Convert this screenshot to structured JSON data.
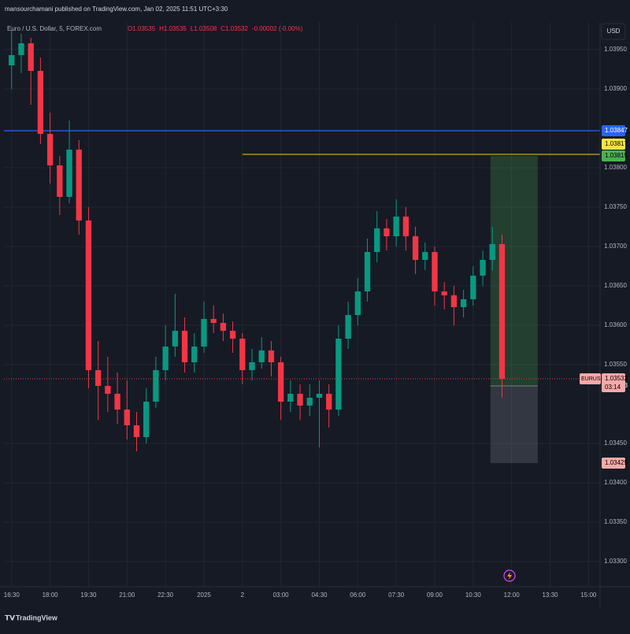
{
  "header": {
    "publisher": "mansourchamani published on TradingView.com, Jan 02, 2025 11:51 UTC+3:30",
    "symbol": "Euro / U.S. Dollar, 5, FOREX.com",
    "ohlc": [
      "O1.03535",
      "H1.03535",
      "L1.03508",
      "C1.03532",
      "-0.00002 (-0.00%)"
    ]
  },
  "currency": "USD",
  "footer": "TradingView",
  "chart_data": {
    "type": "candlestick",
    "up_color": "#089981",
    "down_color": "#f23645",
    "x": [
      0,
      0.25,
      0.5,
      0.75,
      1,
      1.25,
      1.5,
      1.75,
      2,
      2.25,
      2.5,
      2.75,
      3,
      3.25,
      3.5,
      3.75,
      4,
      4.25,
      4.5,
      4.75,
      5,
      5.25,
      5.5,
      5.75,
      6,
      6.25,
      6.5,
      6.75,
      7,
      7.25,
      7.5,
      7.75,
      8,
      8.25,
      8.5,
      8.75,
      9,
      9.25,
      9.5,
      9.75,
      10,
      10.25,
      10.5,
      10.75,
      11,
      11.25,
      11.5,
      11.75,
      12,
      12.25,
      12.5,
      12.75
    ],
    "candles": [
      [
        1.0393,
        1.03975,
        1.039,
        1.03943
      ],
      [
        1.03943,
        1.0397,
        1.0392,
        1.03958
      ],
      [
        1.03958,
        1.03965,
        1.0388,
        1.03923
      ],
      [
        1.03923,
        1.0394,
        1.0383,
        1.03843
      ],
      [
        1.03843,
        1.0387,
        1.0378,
        1.03803
      ],
      [
        1.03803,
        1.03815,
        1.0374,
        1.03763
      ],
      [
        1.03763,
        1.0386,
        1.03755,
        1.03823
      ],
      [
        1.03823,
        1.03835,
        1.03715,
        1.03733
      ],
      [
        1.03733,
        1.0375,
        1.0352,
        1.03543
      ],
      [
        1.03543,
        1.0358,
        1.0348,
        1.03523
      ],
      [
        1.03523,
        1.0356,
        1.0349,
        1.03513
      ],
      [
        1.03513,
        1.0354,
        1.03475,
        1.03493
      ],
      [
        1.03493,
        1.0353,
        1.03455,
        1.03473
      ],
      [
        1.03473,
        1.0349,
        1.0344,
        1.03458
      ],
      [
        1.03458,
        1.0352,
        1.0345,
        1.03503
      ],
      [
        1.03503,
        1.0356,
        1.03495,
        1.03543
      ],
      [
        1.03543,
        1.036,
        1.0353,
        1.03573
      ],
      [
        1.03573,
        1.0364,
        1.0356,
        1.03593
      ],
      [
        1.03593,
        1.0361,
        1.0354,
        1.03553
      ],
      [
        1.03553,
        1.0359,
        1.0354,
        1.03573
      ],
      [
        1.03573,
        1.0363,
        1.03565,
        1.03608
      ],
      [
        1.03608,
        1.03625,
        1.0359,
        1.03603
      ],
      [
        1.03603,
        1.03615,
        1.0358,
        1.03593
      ],
      [
        1.03593,
        1.03605,
        1.03565,
        1.03583
      ],
      [
        1.03583,
        1.0359,
        1.03525,
        1.03543
      ],
      [
        1.03543,
        1.0357,
        1.0353,
        1.03553
      ],
      [
        1.03553,
        1.03585,
        1.03545,
        1.03568
      ],
      [
        1.03568,
        1.0358,
        1.03535,
        1.03553
      ],
      [
        1.03553,
        1.0356,
        1.0348,
        1.03503
      ],
      [
        1.03503,
        1.0353,
        1.0349,
        1.03513
      ],
      [
        1.03513,
        1.03525,
        1.0348,
        1.03498
      ],
      [
        1.03498,
        1.03525,
        1.03485,
        1.03508
      ],
      [
        1.03508,
        1.0353,
        1.03445,
        1.03513
      ],
      [
        1.03513,
        1.03525,
        1.0347,
        1.03493
      ],
      [
        1.03493,
        1.036,
        1.03485,
        1.03583
      ],
      [
        1.03583,
        1.0363,
        1.0357,
        1.03613
      ],
      [
        1.03613,
        1.0366,
        1.036,
        1.03643
      ],
      [
        1.03643,
        1.0371,
        1.0363,
        1.03693
      ],
      [
        1.03693,
        1.03745,
        1.0368,
        1.03723
      ],
      [
        1.03723,
        1.03735,
        1.03695,
        1.03713
      ],
      [
        1.03713,
        1.0376,
        1.037,
        1.03738
      ],
      [
        1.03738,
        1.0375,
        1.03695,
        1.03713
      ],
      [
        1.03713,
        1.03725,
        1.03665,
        1.03683
      ],
      [
        1.03683,
        1.03705,
        1.0367,
        1.03693
      ],
      [
        1.03693,
        1.037,
        1.03625,
        1.03643
      ],
      [
        1.03643,
        1.03655,
        1.0362,
        1.03638
      ],
      [
        1.03638,
        1.0365,
        1.036,
        1.03623
      ],
      [
        1.03623,
        1.03645,
        1.0361,
        1.03633
      ],
      [
        1.03633,
        1.03675,
        1.03625,
        1.03663
      ],
      [
        1.03663,
        1.03695,
        1.0365,
        1.03683
      ],
      [
        1.03683,
        1.03725,
        1.0367,
        1.03703
      ],
      [
        1.03703,
        1.03715,
        1.03508,
        1.03532
      ]
    ],
    "xlim": [
      -0.2,
      15.3
    ],
    "ylim": [
      1.03268,
      1.03985
    ],
    "xticks": [
      {
        "value": 0,
        "label": "16:30"
      },
      {
        "value": 1,
        "label": "18:00"
      },
      {
        "value": 2,
        "label": "19:30"
      },
      {
        "value": 3,
        "label": "21:00"
      },
      {
        "value": 4,
        "label": "22:30"
      },
      {
        "value": 5,
        "label": "2025"
      },
      {
        "value": 6,
        "label": "2"
      },
      {
        "value": 7,
        "label": "03:00"
      },
      {
        "value": 8,
        "label": "04:30"
      },
      {
        "value": 9,
        "label": "06:00"
      },
      {
        "value": 10,
        "label": "07:30"
      },
      {
        "value": 11,
        "label": "09:00"
      },
      {
        "value": 12,
        "label": "10:30"
      },
      {
        "value": 13,
        "label": "12:00"
      },
      {
        "value": 14,
        "label": "13:30"
      },
      {
        "value": 15,
        "label": "15:00"
      }
    ],
    "yticks": [
      {
        "value": 1.0395,
        "label": "1.03950"
      },
      {
        "value": 1.039,
        "label": "1.03900"
      },
      {
        "value": 1.038,
        "label": "1.03800"
      },
      {
        "value": 1.0375,
        "label": "1.03750"
      },
      {
        "value": 1.037,
        "label": "1.03700"
      },
      {
        "value": 1.0365,
        "label": "1.03650"
      },
      {
        "value": 1.036,
        "label": "1.03600"
      },
      {
        "value": 1.0355,
        "label": "1.03550"
      },
      {
        "value": 1.0345,
        "label": "1.03450"
      },
      {
        "value": 1.034,
        "label": "1.03400"
      },
      {
        "value": 1.0335,
        "label": "1.03350"
      },
      {
        "value": 1.033,
        "label": "1.03300"
      }
    ],
    "grid": true,
    "lines": [
      {
        "value": 1.03847,
        "color": "#2962ff",
        "x_start": -0.2
      },
      {
        "value": 1.03817,
        "color": "#c9a825",
        "x_start": 6
      }
    ],
    "position": {
      "target": 1.03815,
      "entry": 1.03523,
      "stop": 1.03425,
      "x": [
        12.45,
        13.68
      ]
    },
    "last_price": {
      "symbol": "EURUSD",
      "value": 1.03532,
      "countdown": "03:14",
      "color": "#f23645"
    }
  }
}
